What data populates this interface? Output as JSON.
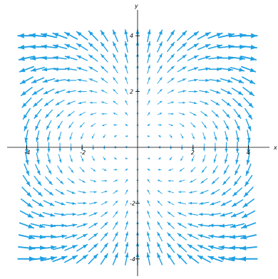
{
  "chart_data": {
    "type": "vector-field",
    "xlabel": "x",
    "ylabel": "y",
    "xlim": [
      -4.2,
      4.2
    ],
    "ylim": [
      -4.2,
      4.2
    ],
    "x_ticks": [
      {
        "value": -4,
        "label": "-4"
      },
      {
        "value": -2,
        "label": "-2"
      },
      {
        "value": 2,
        "label": "2"
      },
      {
        "value": 4,
        "label": "4"
      }
    ],
    "y_ticks": [
      {
        "value": -4,
        "label": "-4"
      },
      {
        "value": -2,
        "label": "-2"
      },
      {
        "value": 2,
        "label": "2"
      },
      {
        "value": 4,
        "label": "4"
      }
    ],
    "field": {
      "dx": "2*x*y",
      "dy": "y^2 - x^2",
      "grid_min": -4,
      "grid_max": 4,
      "grid_count": 21
    },
    "grid": false,
    "arrow_color": "#1ea0e3",
    "axis_color": "#000000"
  }
}
